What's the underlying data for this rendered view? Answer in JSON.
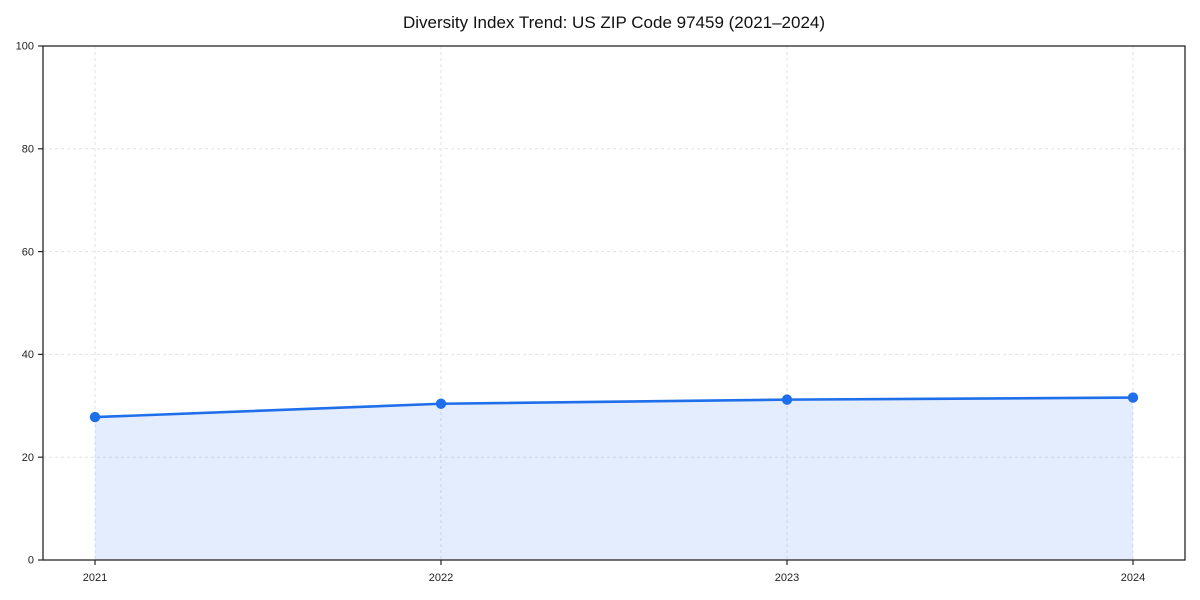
{
  "chart_data": {
    "type": "area",
    "title": "Diversity Index Trend: US ZIP Code 97459 (2021–2024)",
    "categories": [
      "2021",
      "2022",
      "2023",
      "2024"
    ],
    "values": [
      27.8,
      30.4,
      31.2,
      31.6
    ],
    "series": [
      {
        "name": "Diversity Index",
        "values": [
          27.8,
          30.4,
          31.2,
          31.6
        ]
      }
    ],
    "xlabel": "",
    "ylabel": "",
    "ylim": [
      0,
      100
    ],
    "yticks": [
      0,
      20,
      40,
      60,
      80,
      100
    ],
    "ytick_labels": [
      "0",
      "20",
      "40",
      "60",
      "80",
      "100"
    ],
    "grid": "dashed-both-axes",
    "legend": "none",
    "line_color": "#1f6feb",
    "marker_color": "#1f6feb",
    "fill_color": "rgba(31,111,235,0.12)",
    "axis_color": "#262626",
    "grid_color": "#e2e2e2",
    "tick_label_color": "#222222",
    "title_color": "#111111",
    "background_color": "#ffffff"
  }
}
